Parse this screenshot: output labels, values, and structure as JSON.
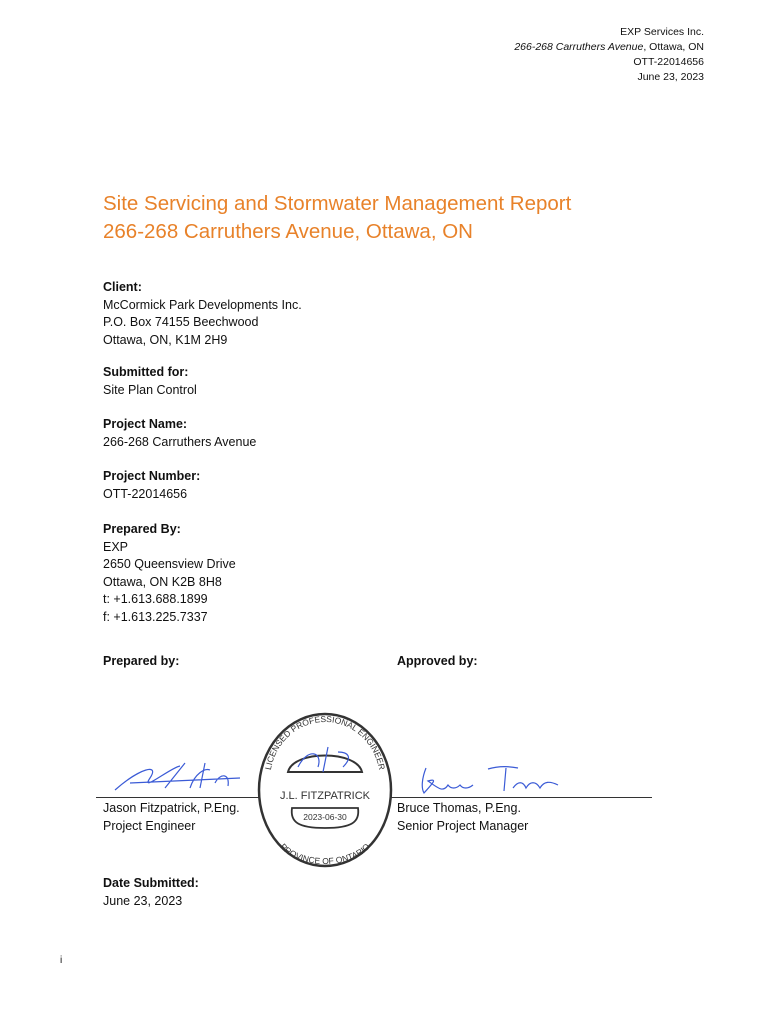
{
  "header": {
    "company": "EXP Services Inc.",
    "address_italic": "266-268 Carruthers Avenue",
    "address_rest": ", Ottawa, ON",
    "project_no": "OTT-22014656",
    "date": "June 23, 2023"
  },
  "title": {
    "line1": "Site Servicing and Stormwater Management Report",
    "line2": "266-268 Carruthers Avenue, Ottawa, ON",
    "color": "#e8822a"
  },
  "client": {
    "label": "Client:",
    "lines": [
      "McCormick Park Developments Inc.",
      "P.O. Box 74155 Beechwood",
      "Ottawa, ON, K1M 2H9"
    ]
  },
  "submitted": {
    "label": "Submitted for:",
    "lines": [
      "Site Plan Control"
    ]
  },
  "project_name": {
    "label": "Project Name:",
    "lines": [
      "266-268 Carruthers Avenue"
    ]
  },
  "project_number": {
    "label": "Project Number:",
    "lines": [
      "OTT-22014656"
    ]
  },
  "prepared": {
    "label": "Prepared By:",
    "lines": [
      "EXP",
      "2650 Queensview Drive",
      "Ottawa, ON  K2B 8H8",
      "t: +1.613.688.1899",
      "f: +1.613.225.7337"
    ]
  },
  "signatures": {
    "prepared_label": "Prepared by:",
    "approved_label": "Approved by:",
    "left": {
      "name": "Jason Fitzpatrick, P.Eng.",
      "role": "Project Engineer"
    },
    "right": {
      "name": "Bruce Thomas, P.Eng.",
      "role": "Senior Project Manager"
    },
    "seal": {
      "top": "LICENSED PROFESSIONAL ENGINEER",
      "name": "J.L. FITZPATRICK",
      "date": "2023-06-30",
      "bottom": "PROVINCE OF ONTARIO"
    }
  },
  "date_submitted": {
    "label": "Date Submitted:",
    "value": "June 23, 2023"
  },
  "page_number": "i"
}
